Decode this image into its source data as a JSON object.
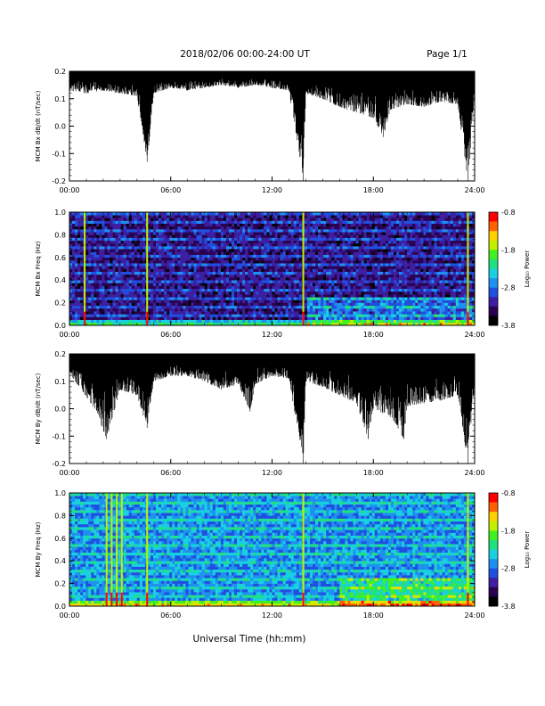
{
  "header": {
    "date_range": "2018/02/06  00:00-24:00 UT",
    "page": "Page 1/1"
  },
  "colors": {
    "palette": [
      "#000000",
      "#2a0050",
      "#3c1fa0",
      "#1f4fe0",
      "#1f8ff0",
      "#18d0e0",
      "#20e080",
      "#40f020",
      "#c0f000",
      "#ffd000",
      "#ff6000",
      "#ff0000"
    ],
    "trace": "#000000",
    "axis": "#000000"
  },
  "chart_data": [
    {
      "type": "line",
      "ylabel": "MCM Bx dB/dt (nT/sec)",
      "xlim": [
        0,
        24
      ],
      "ylim": [
        -0.2,
        0.2
      ],
      "x_ticks": [
        0,
        6,
        12,
        18,
        24
      ],
      "x_tick_labels": [
        "00:00",
        "06:00",
        "12:00",
        "18:00",
        "24:00"
      ],
      "y_ticks": [
        -0.2,
        -0.1,
        0.0,
        0.1,
        0.2
      ],
      "y_tick_labels": [
        "-0.2",
        "-0.1",
        "0.0",
        "0.1",
        "0.2"
      ],
      "series": [
        {
          "values_note": "",
          "envelope_top": 0.2,
          "min_envelope": [
            [
              0,
              0.13
            ],
            [
              1,
              0.12
            ],
            [
              2,
              0.13
            ],
            [
              3,
              0.12
            ],
            [
              4,
              0.11
            ],
            [
              4.6,
              -0.13
            ],
            [
              5,
              0.12
            ],
            [
              6,
              0.14
            ],
            [
              7,
              0.13
            ],
            [
              8,
              0.14
            ],
            [
              9,
              0.15
            ],
            [
              10,
              0.14
            ],
            [
              11,
              0.15
            ],
            [
              12,
              0.14
            ],
            [
              13,
              0.13
            ],
            [
              13.85,
              -0.2
            ],
            [
              14,
              0.12
            ],
            [
              15,
              0.1
            ],
            [
              16,
              0.07
            ],
            [
              17,
              0.05
            ],
            [
              18,
              0.03
            ],
            [
              18.6,
              -0.04
            ],
            [
              19,
              0.06
            ],
            [
              20,
              0.08
            ],
            [
              21,
              0.07
            ],
            [
              22,
              0.09
            ],
            [
              23,
              0.08
            ],
            [
              23.6,
              -0.2
            ],
            [
              24,
              0.1
            ]
          ]
        }
      ]
    },
    {
      "type": "heatmap",
      "ylabel": "MCM Bx Freq (Hz)",
      "xlim": [
        0,
        24
      ],
      "ylim": [
        0.0,
        1.0
      ],
      "x_ticks": [
        0,
        6,
        12,
        18,
        24
      ],
      "x_tick_labels": [
        "00:00",
        "06:00",
        "12:00",
        "18:00",
        "24:00"
      ],
      "y_ticks": [
        0.0,
        0.2,
        0.4,
        0.6,
        0.8,
        1.0
      ],
      "y_tick_labels": [
        "0.0",
        "0.2",
        "0.4",
        "0.6",
        "0.8",
        "1.0"
      ],
      "colorbar": {
        "label": "Log₁₀ Power",
        "range": [
          -3.8,
          -0.8
        ],
        "ticks": [
          -0.8,
          -1.8,
          -2.8,
          -3.8
        ],
        "tick_labels": [
          "-0.8",
          "-1.8",
          "-2.8",
          "-3.8"
        ]
      },
      "background_level": -3.3,
      "vertical_events_hours": [
        0.9,
        4.6,
        13.85,
        23.6
      ],
      "active_band": {
        "start_hour": 14,
        "end_hour": 24,
        "max_freq": 0.25
      }
    },
    {
      "type": "line",
      "ylabel": "MCM By dB/dt (nT/sec)",
      "xlim": [
        0,
        24
      ],
      "ylim": [
        -0.2,
        0.2
      ],
      "x_ticks": [
        0,
        6,
        12,
        18,
        24
      ],
      "x_tick_labels": [
        "00:00",
        "06:00",
        "12:00",
        "18:00",
        "24:00"
      ],
      "y_ticks": [
        -0.2,
        -0.1,
        0.0,
        0.1,
        0.2
      ],
      "y_tick_labels": [
        "-0.2",
        "-0.1",
        "0.0",
        "0.1",
        "0.2"
      ],
      "series": [
        {
          "values_note": "",
          "envelope_top": 0.2,
          "min_envelope": [
            [
              0,
              0.13
            ],
            [
              0.8,
              0.06
            ],
            [
              1.5,
              0.0
            ],
            [
              2.2,
              -0.11
            ],
            [
              3,
              0.07
            ],
            [
              4,
              0.05
            ],
            [
              4.6,
              -0.07
            ],
            [
              5,
              0.1
            ],
            [
              6,
              0.12
            ],
            [
              7,
              0.12
            ],
            [
              8,
              0.1
            ],
            [
              9,
              0.07
            ],
            [
              10,
              0.09
            ],
            [
              10.7,
              -0.01
            ],
            [
              11,
              0.09
            ],
            [
              12,
              0.12
            ],
            [
              13,
              0.11
            ],
            [
              13.85,
              -0.2
            ],
            [
              14,
              0.1
            ],
            [
              15,
              0.08
            ],
            [
              16,
              0.05
            ],
            [
              17,
              0.02
            ],
            [
              17.7,
              -0.11
            ],
            [
              18,
              0.0
            ],
            [
              19,
              -0.03
            ],
            [
              19.8,
              -0.11
            ],
            [
              20,
              0.01
            ],
            [
              21,
              0.02
            ],
            [
              22,
              0.03
            ],
            [
              23,
              0.05
            ],
            [
              23.6,
              -0.2
            ],
            [
              24,
              0.09
            ]
          ]
        }
      ]
    },
    {
      "type": "heatmap",
      "ylabel": "MCM By Freq (Hz)",
      "xlim": [
        0,
        24
      ],
      "ylim": [
        0.0,
        1.0
      ],
      "x_ticks": [
        0,
        6,
        12,
        18,
        24
      ],
      "x_tick_labels": [
        "00:00",
        "06:00",
        "12:00",
        "18:00",
        "24:00"
      ],
      "y_ticks": [
        0.0,
        0.2,
        0.4,
        0.6,
        0.8,
        1.0
      ],
      "y_tick_labels": [
        "0.0",
        "0.2",
        "0.4",
        "0.6",
        "0.8",
        "1.0"
      ],
      "colorbar": {
        "label": "Log₁₀ Power",
        "range": [
          -3.8,
          -0.8
        ],
        "ticks": [
          -0.8,
          -1.8,
          -2.8,
          -3.8
        ],
        "tick_labels": [
          "-0.8",
          "-1.8",
          "-2.8",
          "-3.8"
        ]
      },
      "background_level": -2.7,
      "vertical_events_hours": [
        2.2,
        2.5,
        2.8,
        3.1,
        4.6,
        13.85,
        23.6
      ],
      "active_band": {
        "start_hour": 16,
        "end_hour": 24,
        "max_freq": 0.25
      }
    }
  ],
  "xlabel": "Universal Time (hh:mm)"
}
